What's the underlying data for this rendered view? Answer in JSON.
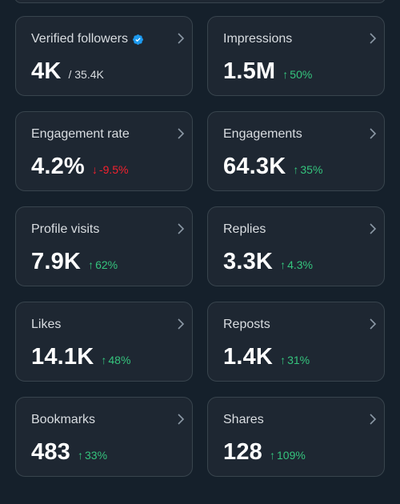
{
  "metrics": [
    {
      "label": "Verified followers",
      "value": "4K",
      "sub": "/ 35.4K"
    },
    {
      "label": "Impressions",
      "value": "1.5M",
      "change": "50%",
      "direction": "up"
    },
    {
      "label": "Engagement rate",
      "value": "4.2%",
      "change": "-9.5%",
      "direction": "down"
    },
    {
      "label": "Engagements",
      "value": "64.3K",
      "change": "35%",
      "direction": "up"
    },
    {
      "label": "Profile visits",
      "value": "7.9K",
      "change": "62%",
      "direction": "up"
    },
    {
      "label": "Replies",
      "value": "3.3K",
      "change": "4.3%",
      "direction": "up"
    },
    {
      "label": "Likes",
      "value": "14.1K",
      "change": "48%",
      "direction": "up"
    },
    {
      "label": "Reposts",
      "value": "1.4K",
      "change": "31%",
      "direction": "up"
    },
    {
      "label": "Bookmarks",
      "value": "483",
      "change": "33%",
      "direction": "up"
    },
    {
      "label": "Shares",
      "value": "128",
      "change": "109%",
      "direction": "up"
    }
  ],
  "icons": {
    "chevron": "chevron-right-icon",
    "verified": "verified-badge-icon",
    "up": "arrow-up-icon",
    "down": "arrow-down-icon"
  },
  "colors": {
    "background": "#15202b",
    "card": "#1e2732",
    "border": "#38444d",
    "up": "#35c47d",
    "down": "#f4212e",
    "verified": "#1d9bf0"
  }
}
